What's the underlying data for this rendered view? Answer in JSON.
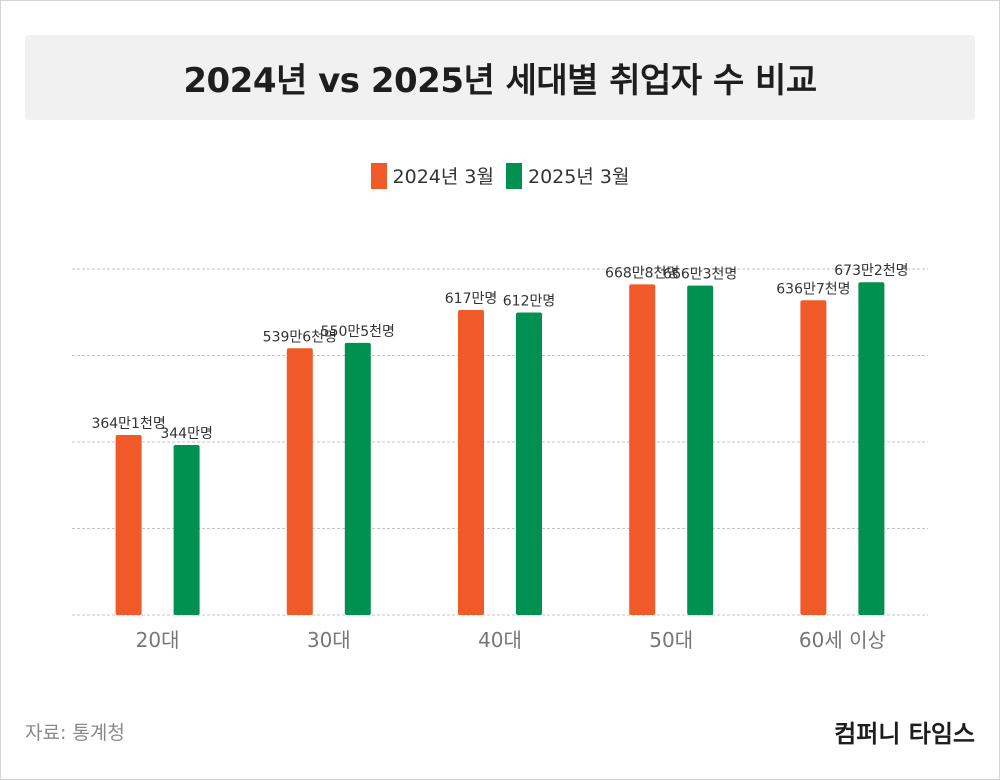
{
  "title": "2024년 vs 2025년 세대별 취업자 수 비교",
  "legend": [
    {
      "label": "2024년 3월",
      "color": "#f05a28"
    },
    {
      "label": "2025년 3월",
      "color": "#00904f"
    }
  ],
  "chart_data": {
    "type": "bar",
    "title": "2024년 vs 2025년 세대별 취업자 수 비교",
    "xlabel": "",
    "ylabel": "",
    "categories": [
      "20대",
      "30대",
      "40대",
      "50대",
      "60세 이상"
    ],
    "series": [
      {
        "name": "2024년 3월",
        "color": "#f05a28",
        "values": [
          364.1,
          539.6,
          617,
          668.8,
          636.7
        ],
        "labels": [
          "364만1천명",
          "539만6천명",
          "617만명",
          "668만8천명",
          "636만7천명"
        ]
      },
      {
        "name": "2025년 3월",
        "color": "#00904f",
        "values": [
          344,
          550.5,
          612,
          666.3,
          673.2
        ],
        "labels": [
          "344만명",
          "550만5천명",
          "612만명",
          "666만3천명",
          "673만2천명"
        ]
      }
    ],
    "ylim": [
      0,
      700
    ],
    "gridlines": [
      0,
      175,
      350,
      525,
      700
    ],
    "grid": true,
    "legend_position": "top-center"
  },
  "footer": {
    "source": "자료: 통계청",
    "brand": "컴퍼니 타임스"
  }
}
